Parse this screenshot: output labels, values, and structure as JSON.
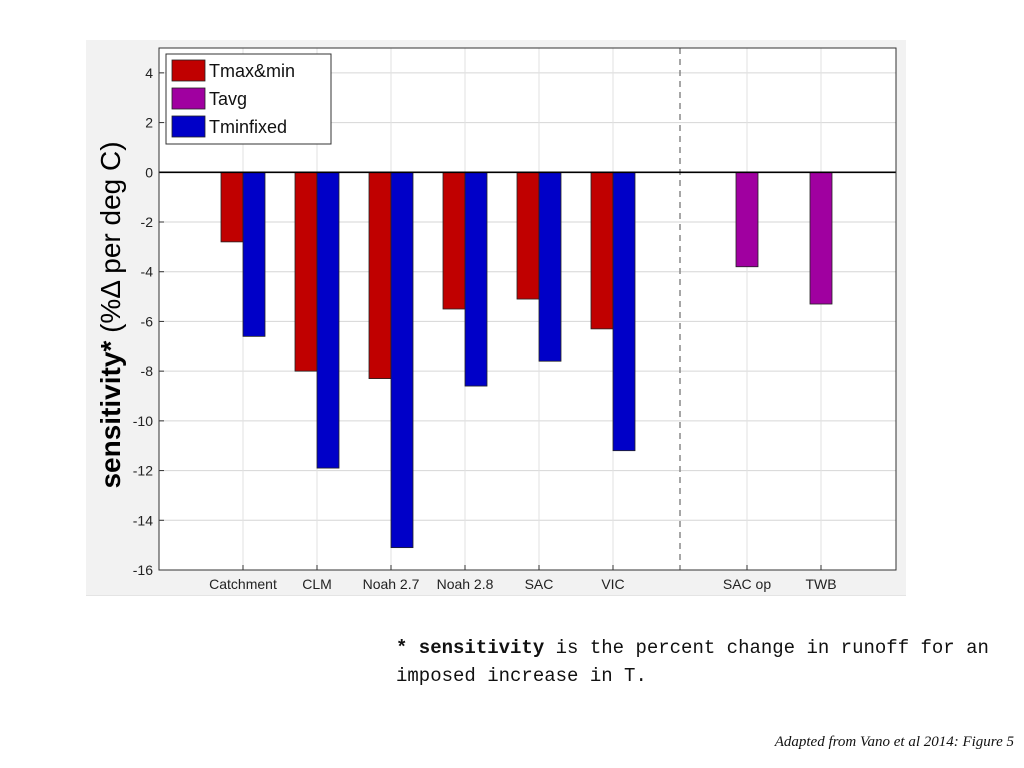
{
  "chart_data": {
    "type": "bar",
    "categories": [
      "Catchment",
      "CLM",
      "Noah 2.7",
      "Noah 2.8",
      "SAC",
      "VIC",
      "SAC op",
      "TWB"
    ],
    "series": [
      {
        "name": "Tmax&min",
        "color": "#c00000",
        "values": [
          -2.8,
          -8.0,
          -8.3,
          -5.5,
          -5.1,
          -6.3,
          null,
          null
        ]
      },
      {
        "name": "Tavg",
        "color": "#a000a0",
        "values": [
          null,
          null,
          null,
          null,
          null,
          null,
          -3.8,
          -5.3
        ]
      },
      {
        "name": "Tminfixed",
        "color": "#0000c8",
        "values": [
          -6.6,
          -11.9,
          -15.1,
          -8.6,
          -7.6,
          -11.2,
          null,
          null
        ]
      }
    ],
    "ylim": [
      -16,
      5
    ],
    "yticks": [
      "4",
      "2",
      "0",
      "-2",
      "-4",
      "-6",
      "-8",
      "-10",
      "-12",
      "-14",
      "-16"
    ],
    "ylabel_bold": "sensitivity*",
    "ylabel_rest": " (%Δ per deg C)",
    "grid": true,
    "legend_position": "top-left",
    "separator_after_category": "VIC"
  },
  "note": {
    "bold": "* sensitivity",
    "text": " is the percent change in runoff for an imposed increase in T."
  },
  "source": "Adapted from Vano et al 2014: Figure 5"
}
